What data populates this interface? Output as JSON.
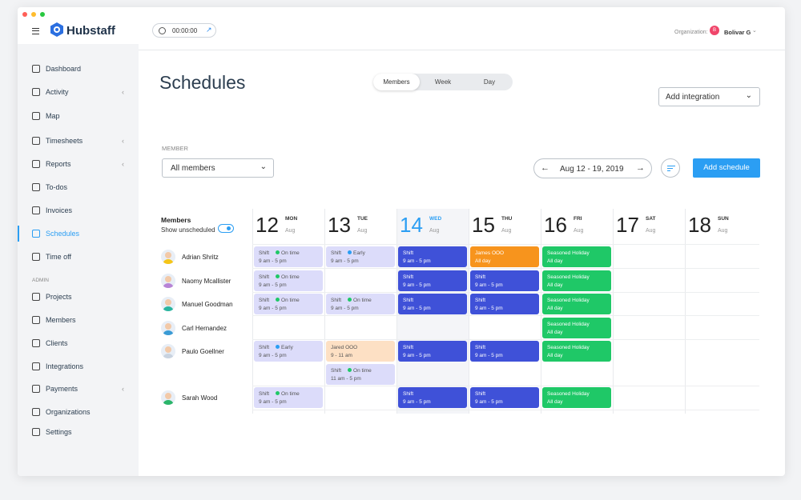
{
  "window": {
    "dot_colors": [
      "#ff5f57",
      "#febc2e",
      "#28c840"
    ]
  },
  "header": {
    "brand": "Hubstaff",
    "timer": "00:00:00",
    "org_label": "Organization:",
    "org_initial": "B",
    "org_user": "Bolivar G"
  },
  "sidebar": {
    "items": [
      {
        "label": "Dashboard",
        "icon": "dashboard-icon",
        "chevron": false
      },
      {
        "label": "Activity",
        "icon": "activity-icon",
        "chevron": true
      },
      {
        "label": "Map",
        "icon": "map-icon",
        "chevron": false
      },
      {
        "label": "Timesheets",
        "icon": "clock-icon",
        "chevron": true
      },
      {
        "label": "Reports",
        "icon": "reports-icon",
        "chevron": true
      },
      {
        "label": "To-dos",
        "icon": "checkbox-icon",
        "chevron": false
      },
      {
        "label": "Invoices",
        "icon": "invoice-icon",
        "chevron": false
      },
      {
        "label": "Schedules",
        "icon": "calendar-icon",
        "chevron": false,
        "active": true
      },
      {
        "label": "Time off",
        "icon": "pie-icon",
        "chevron": false
      }
    ],
    "admin_label": "ADMIN",
    "admin_items": [
      {
        "label": "Projects",
        "icon": "folder-icon"
      },
      {
        "label": "Members",
        "icon": "members-icon"
      },
      {
        "label": "Clients",
        "icon": "briefcase-icon"
      },
      {
        "label": "Integrations",
        "icon": "integrations-icon"
      },
      {
        "label": "Payments",
        "icon": "payments-icon",
        "chevron": true
      },
      {
        "label": "Organizations",
        "icon": "organizations-icon"
      },
      {
        "label": "Settings",
        "icon": "settings-icon"
      }
    ]
  },
  "page": {
    "title": "Schedules",
    "views": [
      "Members",
      "Week",
      "Day"
    ],
    "active_view": "Members",
    "add_integration": "Add integration",
    "member_label": "MEMBER",
    "member_select": "All members",
    "date_range": "Aug 12 - 19, 2019",
    "add_schedule": "Add schedule"
  },
  "grid": {
    "members_header": "Members",
    "show_unscheduled": "Show unscheduled",
    "days": [
      {
        "num": "12",
        "wd": "MON",
        "mo": "Aug"
      },
      {
        "num": "13",
        "wd": "TUE",
        "mo": "Aug"
      },
      {
        "num": "14",
        "wd": "WED",
        "mo": "Aug",
        "today": true
      },
      {
        "num": "15",
        "wd": "THU",
        "mo": "Aug"
      },
      {
        "num": "16",
        "wd": "FRI",
        "mo": "Aug"
      },
      {
        "num": "17",
        "wd": "SAT",
        "mo": "Aug"
      },
      {
        "num": "18",
        "wd": "SUN",
        "mo": "Aug"
      }
    ],
    "members": [
      {
        "name": "Adrian Shritz",
        "color": "#f5c518"
      },
      {
        "name": "Naomy Mcallister",
        "color": "#b784d6"
      },
      {
        "name": "Manuel Goodman",
        "color": "#2bb5a0"
      },
      {
        "name": "Carl Hernandez",
        "color": "#3a9bd5"
      },
      {
        "name": "Paulo Goellner",
        "color": "#c9d3e0"
      },
      {
        "name": "Sarah Wood",
        "color": "#2bb56a"
      }
    ],
    "shifts": [
      {
        "m": 0,
        "d": 0,
        "sub": 0,
        "kind": "lt",
        "title": "Shift",
        "status": "On time",
        "status_color": "#1fc867",
        "time": "9 am - 5 pm"
      },
      {
        "m": 0,
        "d": 1,
        "sub": 0,
        "kind": "lt",
        "title": "Shift",
        "status": "Early",
        "status_color": "#2b9ef3",
        "time": "9 am - 5 pm"
      },
      {
        "m": 0,
        "d": 2,
        "sub": 0,
        "kind": "bl",
        "title": "Shift",
        "time": "9 am - 5 pm"
      },
      {
        "m": 0,
        "d": 3,
        "sub": 0,
        "kind": "or",
        "title": "James OOO",
        "time": "All day"
      },
      {
        "m": 0,
        "d": 4,
        "sub": 0,
        "kind": "gr",
        "title": "Seasoned Holiday",
        "time": "All day"
      },
      {
        "m": 1,
        "d": 0,
        "sub": 0,
        "kind": "lt",
        "title": "Shift",
        "status": "On time",
        "status_color": "#1fc867",
        "time": "9 am - 5 pm"
      },
      {
        "m": 1,
        "d": 2,
        "sub": 0,
        "kind": "bl",
        "title": "Shift",
        "time": "9 am - 5 pm"
      },
      {
        "m": 1,
        "d": 3,
        "sub": 0,
        "kind": "bl",
        "title": "Shift",
        "time": "9 am - 5 pm"
      },
      {
        "m": 1,
        "d": 4,
        "sub": 0,
        "kind": "gr",
        "title": "Seasoned Holiday",
        "time": "All day"
      },
      {
        "m": 2,
        "d": 0,
        "sub": 0,
        "kind": "lt",
        "title": "Shift",
        "status": "On time",
        "status_color": "#1fc867",
        "time": "9 am - 5 pm"
      },
      {
        "m": 2,
        "d": 1,
        "sub": 0,
        "kind": "lt",
        "title": "Shift",
        "status": "On time",
        "status_color": "#1fc867",
        "time": "9 am - 5 pm"
      },
      {
        "m": 2,
        "d": 2,
        "sub": 0,
        "kind": "bl",
        "title": "Shift",
        "time": "9 am - 5 pm"
      },
      {
        "m": 2,
        "d": 3,
        "sub": 0,
        "kind": "bl",
        "title": "Shift",
        "time": "9 am - 5 pm"
      },
      {
        "m": 2,
        "d": 4,
        "sub": 0,
        "kind": "gr",
        "title": "Seasoned Holiday",
        "time": "All day"
      },
      {
        "m": 3,
        "d": 4,
        "sub": 0,
        "kind": "gr",
        "title": "Seasoned Holiday",
        "time": "All day"
      },
      {
        "m": 4,
        "d": 0,
        "sub": 0,
        "kind": "lt",
        "title": "Shift",
        "status": "Early",
        "status_color": "#2b9ef3",
        "time": "9 am - 5 pm"
      },
      {
        "m": 4,
        "d": 1,
        "sub": 0,
        "kind": "pe",
        "title": "Jared OOO",
        "time": "9 - 11 am"
      },
      {
        "m": 4,
        "d": 1,
        "sub": 1,
        "kind": "lt",
        "title": "Shift",
        "status": "On time",
        "status_color": "#1fc867",
        "time": "11 am - 5 pm"
      },
      {
        "m": 4,
        "d": 2,
        "sub": 0,
        "kind": "bl",
        "title": "Shift",
        "time": "9 am - 5 pm"
      },
      {
        "m": 4,
        "d": 3,
        "sub": 0,
        "kind": "bl",
        "title": "Shift",
        "time": "9 am - 5 pm"
      },
      {
        "m": 4,
        "d": 4,
        "sub": 0,
        "kind": "gr",
        "title": "Seasoned Holiday",
        "time": "All day"
      },
      {
        "m": 5,
        "d": 0,
        "sub": 0,
        "kind": "lt",
        "title": "Shift",
        "status": "On time",
        "status_color": "#1fc867",
        "time": "9 am - 5 pm"
      },
      {
        "m": 5,
        "d": 2,
        "sub": 0,
        "kind": "bl",
        "title": "Shift",
        "time": "9 am - 5 pm"
      },
      {
        "m": 5,
        "d": 3,
        "sub": 0,
        "kind": "bl",
        "title": "Shift",
        "time": "9 am - 5 pm"
      },
      {
        "m": 5,
        "d": 4,
        "sub": 0,
        "kind": "gr",
        "title": "Seasoned Holiday",
        "time": "All day"
      }
    ]
  }
}
